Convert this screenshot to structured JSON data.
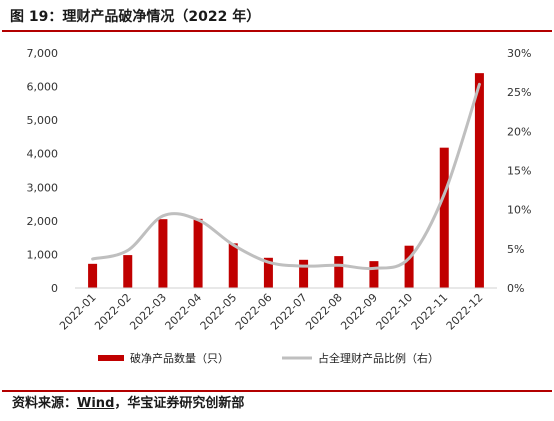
{
  "figure": {
    "title": "图 19：理财产品破净情况（2022 年）",
    "source_prefix": "资料来源：",
    "source_name": "Wind",
    "source_suffix": "，华宝证券研究创新部"
  },
  "chart_data": {
    "type": "bar",
    "title": "",
    "categories": [
      "2022-01",
      "2022-02",
      "2022-03",
      "2022-04",
      "2022-05",
      "2022-06",
      "2022-07",
      "2022-08",
      "2022-09",
      "2022-10",
      "2022-11",
      "2022-12"
    ],
    "series": [
      {
        "name": "破净产品数量（只）",
        "type": "bar",
        "axis": "left",
        "color": "#c00000",
        "values": [
          720,
          980,
          2050,
          2060,
          1330,
          900,
          840,
          950,
          800,
          1260,
          4180,
          6400
        ]
      },
      {
        "name": "占全理财产品比例（右）",
        "type": "line",
        "axis": "right",
        "color": "#bfbfbf",
        "values": [
          0.037,
          0.048,
          0.092,
          0.087,
          0.055,
          0.033,
          0.028,
          0.029,
          0.025,
          0.038,
          0.12,
          0.26
        ]
      }
    ],
    "y_left": {
      "min": 0,
      "max": 7000,
      "ticks": [
        0,
        1000,
        2000,
        3000,
        4000,
        5000,
        6000,
        7000
      ],
      "tick_labels": [
        "0",
        "1,000",
        "2,000",
        "3,000",
        "4,000",
        "5,000",
        "6,000",
        "7,000"
      ]
    },
    "y_right": {
      "min": 0,
      "max": 0.3,
      "ticks": [
        0,
        0.05,
        0.1,
        0.15,
        0.2,
        0.25,
        0.3
      ],
      "tick_labels": [
        "0%",
        "5%",
        "10%",
        "15%",
        "20%",
        "25%",
        "30%"
      ]
    },
    "grid": false,
    "legend_position": "bottom"
  }
}
